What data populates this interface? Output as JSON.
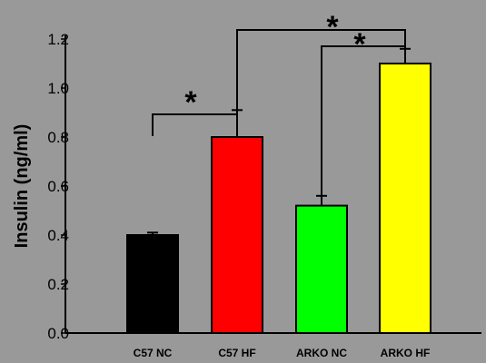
{
  "chart_data": {
    "type": "bar",
    "title": "",
    "xlabel": "",
    "ylabel": "Insulin (ng/ml)",
    "ylim": [
      0,
      1.2
    ],
    "yticks": [
      "0.0",
      "0.2",
      "0.4",
      "0.6",
      "0.8",
      "1.0",
      "1.2"
    ],
    "categories": [
      "C57 NC",
      "C57 HF",
      "ARKO NC",
      "ARKO HF"
    ],
    "values": [
      0.4,
      0.8,
      0.52,
      1.1
    ],
    "errors": [
      0.01,
      0.11,
      0.04,
      0.06
    ],
    "colors": [
      "#000000",
      "#ff0000",
      "#00ff00",
      "#ffff00"
    ],
    "significance": [
      {
        "from": "C57 NC",
        "to": "C57 HF",
        "label": "*"
      },
      {
        "from": "ARKO NC",
        "to": "ARKO HF",
        "label": "*"
      },
      {
        "from": "C57 HF",
        "to": "ARKO HF",
        "label": "*"
      }
    ],
    "grid": false,
    "legend": "none"
  }
}
